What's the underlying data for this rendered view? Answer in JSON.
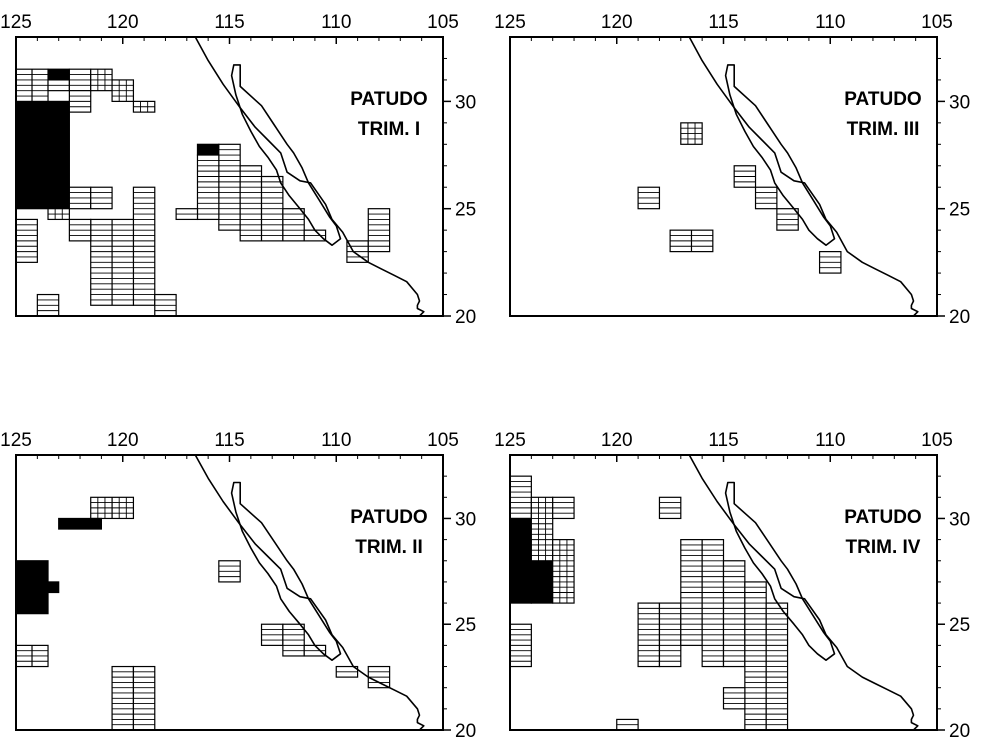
{
  "legend_note": "",
  "panels": [
    {
      "id": "trim-1",
      "species": "PATUDO",
      "period": "TRIM. I",
      "lon_ticks": [
        "125",
        "120",
        "115",
        "110",
        "105"
      ],
      "lat_ticks": [
        "30",
        "25",
        "20"
      ],
      "blocks": [
        {
          "type": "solid",
          "lon": [
            125,
            122.5
          ],
          "lat": [
            30,
            25
          ]
        },
        {
          "type": "solid",
          "lon": [
            123.5,
            122.5
          ],
          "lat": [
            31.5,
            31
          ]
        },
        {
          "type": "solid",
          "lon": [
            116.5,
            115.5
          ],
          "lat": [
            28,
            27.5
          ]
        },
        {
          "type": "hlines",
          "lon": [
            125,
            123.5
          ],
          "lat": [
            31.5,
            30
          ]
        },
        {
          "type": "hlines",
          "lon": [
            123.5,
            122.5
          ],
          "lat": [
            31,
            30.5
          ]
        },
        {
          "type": "hlines",
          "lon": [
            122.5,
            121.5
          ],
          "lat": [
            31.5,
            30.5
          ]
        },
        {
          "type": "hlines",
          "lon": [
            122.5,
            121.5
          ],
          "lat": [
            30.5,
            29.5
          ]
        },
        {
          "type": "grid",
          "lon": [
            121.5,
            120.5
          ],
          "lat": [
            31.5,
            30.5
          ]
        },
        {
          "type": "grid",
          "lon": [
            120.5,
            119.5
          ],
          "lat": [
            31,
            30
          ]
        },
        {
          "type": "grid",
          "lon": [
            119.5,
            118.5
          ],
          "lat": [
            30,
            29.5
          ]
        },
        {
          "type": "hlines",
          "lon": [
            122.5,
            121.5
          ],
          "lat": [
            26,
            25
          ]
        },
        {
          "type": "grid",
          "lon": [
            123.5,
            122.5
          ],
          "lat": [
            25,
            24.5
          ]
        },
        {
          "type": "hlines",
          "lon": [
            121.5,
            120.5
          ],
          "lat": [
            26,
            25
          ]
        },
        {
          "type": "hlines",
          "lon": [
            119.5,
            118.5
          ],
          "lat": [
            26,
            20.5
          ]
        },
        {
          "type": "hlines",
          "lon": [
            121.5,
            119.5
          ],
          "lat": [
            24.5,
            20.5
          ]
        },
        {
          "type": "hlines",
          "lon": [
            122.5,
            121.5
          ],
          "lat": [
            24.5,
            23.5
          ]
        },
        {
          "type": "hlines",
          "lon": [
            125,
            124
          ],
          "lat": [
            24.5,
            22.5
          ]
        },
        {
          "type": "hlines",
          "lon": [
            124,
            123
          ],
          "lat": [
            21,
            20
          ]
        },
        {
          "type": "hlines",
          "lon": [
            118.5,
            117.5
          ],
          "lat": [
            21,
            20
          ]
        },
        {
          "type": "hlines",
          "lon": [
            115.5,
            114.5
          ],
          "lat": [
            28,
            24
          ]
        },
        {
          "type": "hlines",
          "lon": [
            114.5,
            113.5
          ],
          "lat": [
            27,
            23.5
          ]
        },
        {
          "type": "hlines",
          "lon": [
            113.5,
            112.5
          ],
          "lat": [
            26.5,
            23.5
          ]
        },
        {
          "type": "hlines",
          "lon": [
            116.5,
            115.5
          ],
          "lat": [
            27.5,
            24.5
          ]
        },
        {
          "type": "hlines",
          "lon": [
            117.5,
            116.5
          ],
          "lat": [
            25,
            24.5
          ]
        },
        {
          "type": "hlines",
          "lon": [
            112.5,
            111.5
          ],
          "lat": [
            25,
            23.5
          ]
        },
        {
          "type": "hlines",
          "lon": [
            111.5,
            110.5
          ],
          "lat": [
            24,
            23.5
          ]
        },
        {
          "type": "hlines",
          "lon": [
            109.5,
            108.5
          ],
          "lat": [
            23.5,
            22.5
          ]
        },
        {
          "type": "hlines",
          "lon": [
            108.5,
            107.5
          ],
          "lat": [
            25,
            23
          ]
        }
      ]
    },
    {
      "id": "trim-3",
      "species": "PATUDO",
      "period": "TRIM. III",
      "lon_ticks": [
        "125",
        "120",
        "115",
        "110",
        "105"
      ],
      "lat_ticks": [
        "30",
        "25",
        "20"
      ],
      "blocks": [
        {
          "type": "grid",
          "lon": [
            117,
            116
          ],
          "lat": [
            29,
            28
          ]
        },
        {
          "type": "hlines",
          "lon": [
            119,
            118
          ],
          "lat": [
            26,
            25
          ]
        },
        {
          "type": "hlines",
          "lon": [
            117.5,
            115.5
          ],
          "lat": [
            24,
            23
          ]
        },
        {
          "type": "hlines",
          "lon": [
            114.5,
            113.5
          ],
          "lat": [
            27,
            26
          ]
        },
        {
          "type": "hlines",
          "lon": [
            113.5,
            112.5
          ],
          "lat": [
            26,
            25
          ]
        },
        {
          "type": "hlines",
          "lon": [
            112.5,
            111.5
          ],
          "lat": [
            25,
            24
          ]
        },
        {
          "type": "hlines",
          "lon": [
            110.5,
            109.5
          ],
          "lat": [
            23,
            22
          ]
        }
      ]
    },
    {
      "id": "trim-2",
      "species": "PATUDO",
      "period": "TRIM. II",
      "lon_ticks": [
        "125",
        "120",
        "115",
        "110",
        "105"
      ],
      "lat_ticks": [
        "30",
        "25",
        "20"
      ],
      "blocks": [
        {
          "type": "grid",
          "lon": [
            121.5,
            119.5
          ],
          "lat": [
            31,
            30
          ]
        },
        {
          "type": "solid",
          "lon": [
            123,
            121
          ],
          "lat": [
            30,
            29.5
          ]
        },
        {
          "type": "solid",
          "lon": [
            125,
            123.5
          ],
          "lat": [
            28,
            25.5
          ]
        },
        {
          "type": "solid",
          "lon": [
            123.5,
            123
          ],
          "lat": [
            27,
            26.5
          ]
        },
        {
          "type": "hlines",
          "lon": [
            125,
            123.5
          ],
          "lat": [
            24,
            23
          ]
        },
        {
          "type": "hlines",
          "lon": [
            120.5,
            119.5
          ],
          "lat": [
            23,
            20
          ]
        },
        {
          "type": "hlines",
          "lon": [
            119.5,
            118.5
          ],
          "lat": [
            23,
            20
          ]
        },
        {
          "type": "hlines",
          "lon": [
            115.5,
            114.5
          ],
          "lat": [
            28,
            27
          ]
        },
        {
          "type": "hlines",
          "lon": [
            113.5,
            112.5
          ],
          "lat": [
            25,
            24
          ]
        },
        {
          "type": "hlines",
          "lon": [
            112.5,
            111.5
          ],
          "lat": [
            25,
            23.5
          ]
        },
        {
          "type": "hlines",
          "lon": [
            111.5,
            110.5
          ],
          "lat": [
            24,
            23.5
          ]
        },
        {
          "type": "hlines",
          "lon": [
            110,
            109
          ],
          "lat": [
            23,
            22.5
          ]
        },
        {
          "type": "hlines",
          "lon": [
            108.5,
            107.5
          ],
          "lat": [
            23,
            22
          ]
        }
      ]
    },
    {
      "id": "trim-4",
      "species": "PATUDO",
      "period": "TRIM. IV",
      "lon_ticks": [
        "125",
        "120",
        "115",
        "110",
        "105"
      ],
      "lat_ticks": [
        "30",
        "25",
        "20"
      ],
      "blocks": [
        {
          "type": "hlines",
          "lon": [
            125,
            124
          ],
          "lat": [
            32,
            30
          ]
        },
        {
          "type": "solid",
          "lon": [
            125,
            124
          ],
          "lat": [
            30,
            26
          ]
        },
        {
          "type": "solid",
          "lon": [
            124,
            123
          ],
          "lat": [
            28,
            26
          ]
        },
        {
          "type": "grid",
          "lon": [
            124,
            123
          ],
          "lat": [
            31,
            28
          ]
        },
        {
          "type": "grid",
          "lon": [
            123,
            122
          ],
          "lat": [
            29,
            26
          ]
        },
        {
          "type": "hlines",
          "lon": [
            123,
            122
          ],
          "lat": [
            31,
            30
          ]
        },
        {
          "type": "hlines",
          "lon": [
            125,
            124
          ],
          "lat": [
            25,
            23
          ]
        },
        {
          "type": "hlines",
          "lon": [
            118,
            117
          ],
          "lat": [
            31,
            30
          ]
        },
        {
          "type": "hlines",
          "lon": [
            119,
            118
          ],
          "lat": [
            26,
            23
          ]
        },
        {
          "type": "hlines",
          "lon": [
            118,
            117
          ],
          "lat": [
            26,
            23
          ]
        },
        {
          "type": "hlines",
          "lon": [
            117,
            116
          ],
          "lat": [
            29,
            24
          ]
        },
        {
          "type": "hlines",
          "lon": [
            116,
            115
          ],
          "lat": [
            29,
            23
          ]
        },
        {
          "type": "hlines",
          "lon": [
            115,
            114
          ],
          "lat": [
            28,
            23
          ]
        },
        {
          "type": "hlines",
          "lon": [
            114,
            113
          ],
          "lat": [
            27,
            20
          ]
        },
        {
          "type": "hlines",
          "lon": [
            113,
            112
          ],
          "lat": [
            26,
            20
          ]
        },
        {
          "type": "hlines",
          "lon": [
            115,
            114
          ],
          "lat": [
            22,
            21
          ]
        },
        {
          "type": "hlines",
          "lon": [
            120,
            119
          ],
          "lat": [
            20.5,
            20
          ]
        }
      ]
    }
  ]
}
